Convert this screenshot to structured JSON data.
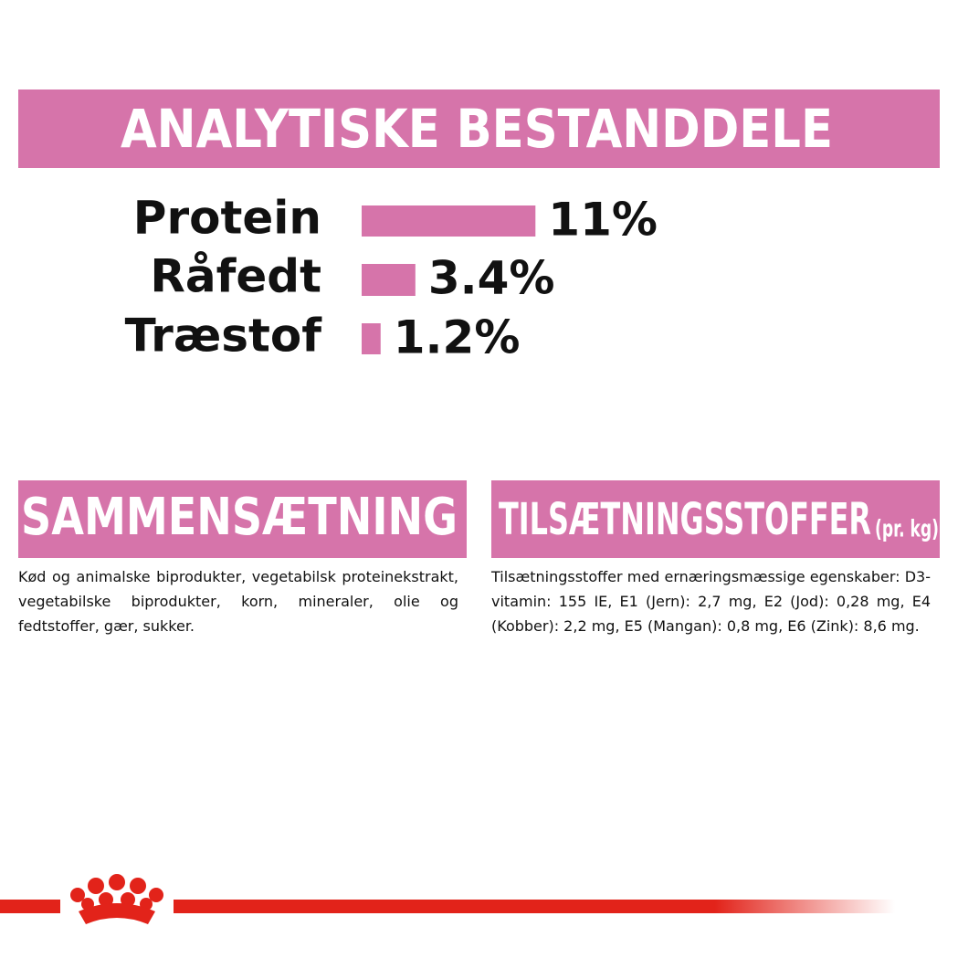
{
  "header": {
    "title": "ANALYTISKE BESTANDDELE"
  },
  "chart_data": {
    "type": "bar",
    "orientation": "horizontal",
    "color": "#d674aa",
    "categories": [
      "Protein",
      "Råfedt",
      "Træstof"
    ],
    "values": [
      11,
      3.4,
      1.2
    ],
    "value_labels": [
      "11%",
      "3.4%",
      "1.2%"
    ]
  },
  "sections": [
    {
      "title": "SAMMENSÆTNING",
      "text": "Kød og animalske biprodukter, vegetabilsk proteinekstrakt, vegetabilske biprodukter, korn, mineraler, olie og fedtstoffer, gær, sukker."
    },
    {
      "title": "TILSÆTNINGSSTOFFER",
      "subtitle": "(pr. kg)",
      "text": "Tilsætningsstoffer med ernæringsmæssige egenskaber: D3-vitamin: 155 IE, E1 (Jern): 2,7 mg, E2 (Jod): 0,28 mg, E4 (Kobber): 2,2 mg, E5 (Mangan): 0,8 mg, E6 (Zink): 8,6 mg."
    }
  ]
}
